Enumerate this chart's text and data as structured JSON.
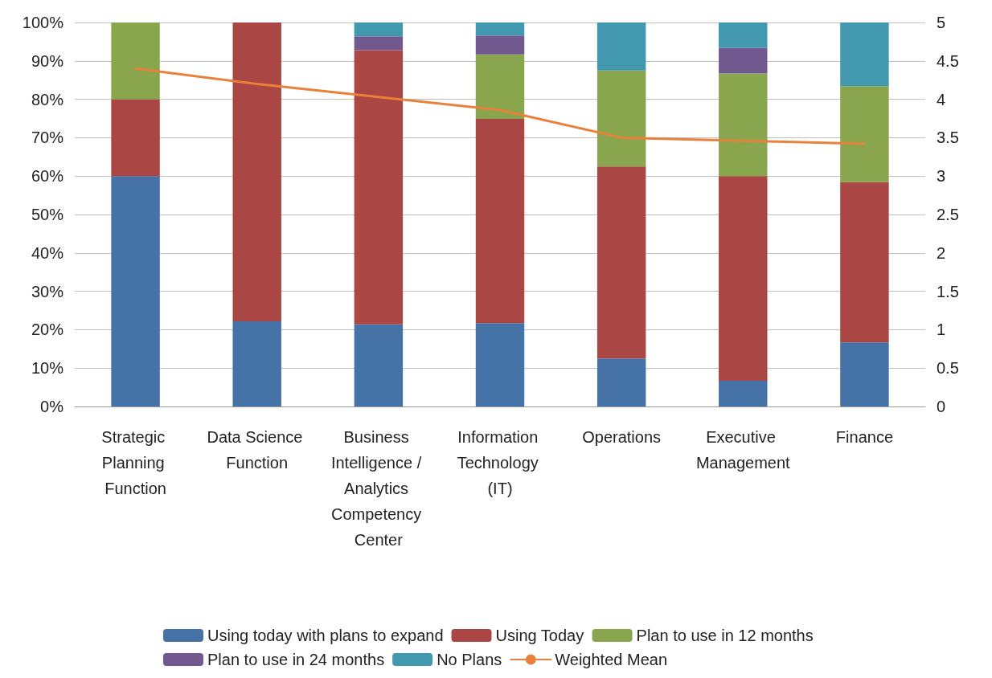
{
  "chart_data": {
    "type": "bar",
    "stacked": true,
    "categories": [
      "Strategic Planning Function",
      "Data Science Function",
      "Business Intelligence / Analytics Competency Center",
      "Information Technology (IT)",
      "Operations",
      "Executive Management",
      "Finance"
    ],
    "series": [
      {
        "name": "Using today with plans to expand",
        "color": "#4572a7",
        "values": [
          60,
          22.2,
          21.4,
          21.7,
          12.5,
          6.7,
          16.7
        ]
      },
      {
        "name": "Using Today",
        "color": "#aa4643",
        "values": [
          20,
          77.8,
          71.4,
          53.2,
          50,
          53.3,
          41.7
        ]
      },
      {
        "name": "Plan to use in 12 months",
        "color": "#89a54e",
        "values": [
          20,
          0,
          0,
          16.8,
          25,
          26.7,
          25
        ]
      },
      {
        "name": "Plan to use in 24 months",
        "color": "#71588f",
        "values": [
          0,
          0,
          3.6,
          4.9,
          0,
          6.7,
          0
        ]
      },
      {
        "name": "No Plans",
        "color": "#4198af",
        "values": [
          0,
          0,
          3.6,
          3.4,
          12.5,
          6.6,
          16.6
        ]
      },
      {
        "name": "Weighted Mean",
        "type": "line",
        "axis": "y2",
        "color": "#e8813a",
        "values": [
          4.4,
          4.2,
          4.03,
          3.86,
          3.5,
          3.46,
          3.42
        ]
      }
    ],
    "ylim": [
      0,
      100
    ],
    "yticks": [
      {
        "value": 0,
        "label": "0%"
      },
      {
        "value": 10,
        "label": "10%"
      },
      {
        "value": 20,
        "label": "20%"
      },
      {
        "value": 30,
        "label": "30%"
      },
      {
        "value": 40,
        "label": "40%"
      },
      {
        "value": 50,
        "label": "50%"
      },
      {
        "value": 60,
        "label": "60%"
      },
      {
        "value": 70,
        "label": "70%"
      },
      {
        "value": 80,
        "label": "80%"
      },
      {
        "value": 90,
        "label": "90%"
      },
      {
        "value": 100,
        "label": "100%"
      }
    ],
    "y2lim": [
      0,
      5
    ],
    "y2ticks": [
      0,
      0.5,
      1,
      1.5,
      2,
      2.5,
      3,
      3.5,
      4,
      4.5,
      5
    ],
    "grid": "y",
    "legend": "bottom",
    "marker": "none",
    "line_style": "solid"
  }
}
